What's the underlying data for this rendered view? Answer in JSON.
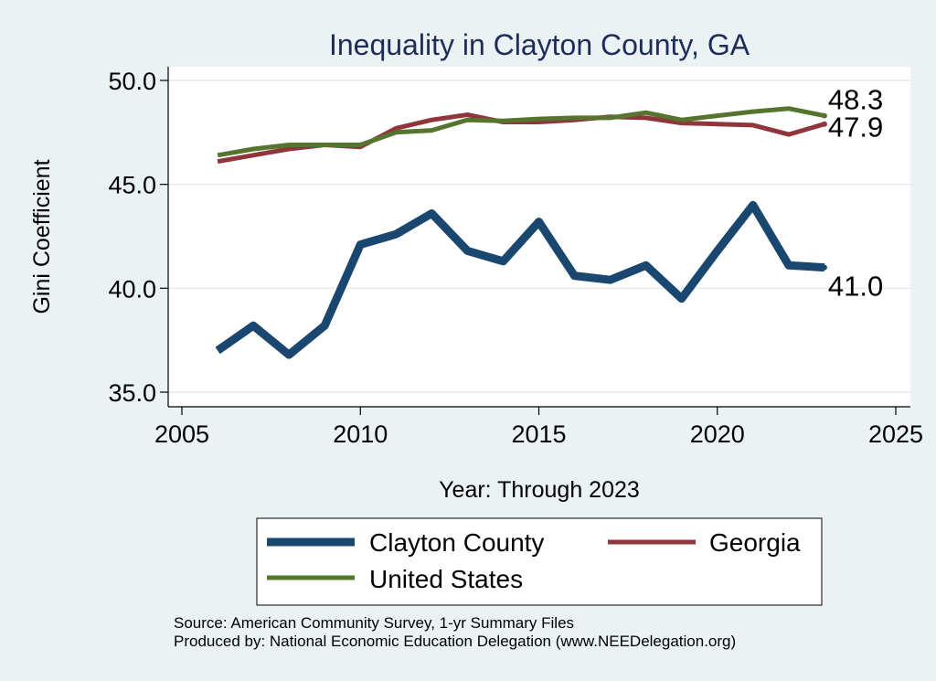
{
  "chart_data": {
    "type": "line",
    "title": "Inequality in Clayton County, GA",
    "xlabel": "Year: Through 2023",
    "ylabel": "Gini Coefficient",
    "xlim": [
      2005,
      2025
    ],
    "ylim": [
      35,
      50
    ],
    "xticks": [
      2005,
      2010,
      2015,
      2020,
      2025
    ],
    "yticks": [
      35,
      40,
      45,
      50
    ],
    "ytick_labels": [
      "35.0",
      "40.0",
      "45.0",
      "50.0"
    ],
    "grid": true,
    "x": [
      2006,
      2007,
      2008,
      2009,
      2010,
      2011,
      2012,
      2013,
      2014,
      2015,
      2016,
      2017,
      2018,
      2019,
      2020,
      2021,
      2022,
      2023
    ],
    "series": [
      {
        "name": "Clayton County",
        "color": "#1a476f",
        "values": [
          37.0,
          38.2,
          36.8,
          38.2,
          42.1,
          42.6,
          43.6,
          41.8,
          41.3,
          43.2,
          40.6,
          40.4,
          41.1,
          39.5,
          41.8,
          44.0,
          41.1,
          41.0
        ],
        "end_label": "41.0"
      },
      {
        "name": "Georgia",
        "color": "#90353b",
        "values": [
          46.1,
          46.4,
          46.7,
          46.9,
          46.8,
          47.7,
          48.1,
          48.35,
          48.0,
          48.0,
          48.1,
          48.25,
          48.2,
          47.95,
          47.9,
          47.85,
          47.4,
          47.9
        ],
        "end_label": "47.9"
      },
      {
        "name": "United States",
        "color": "#55752f",
        "values": [
          46.4,
          46.7,
          46.9,
          46.9,
          46.9,
          47.5,
          47.6,
          48.1,
          48.05,
          48.15,
          48.2,
          48.2,
          48.45,
          48.1,
          48.3,
          48.5,
          48.65,
          48.3
        ],
        "end_label": "48.3"
      }
    ],
    "legend": {
      "position": "bottom",
      "entries": [
        "Clayton County",
        "Georgia",
        "United States"
      ]
    }
  },
  "notes": {
    "source": "Source: American Community Survey, 1-yr Summary Files",
    "produced_by": "Produced by: National Economic Education Delegation (www.NEEDelegation.org)"
  }
}
